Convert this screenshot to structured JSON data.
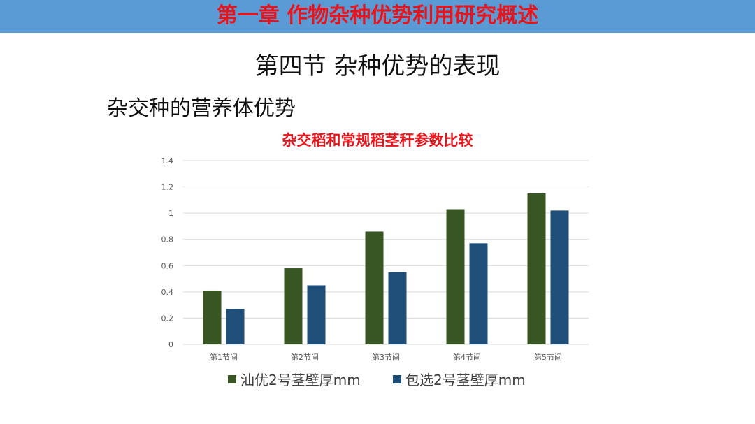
{
  "header": {
    "banner_title": "第一章  作物杂种优势利用研究概述"
  },
  "slide": {
    "section_title": "第四节 杂种优势的表现",
    "subheading": "杂交种的营养体优势"
  },
  "chart_data": {
    "type": "bar",
    "title": "杂交稻和常规稻茎秆参数比较",
    "categories": [
      "第1节间",
      "第2节间",
      "第3节间",
      "第4节间",
      "第5节间"
    ],
    "series": [
      {
        "name": "汕优2号茎壁厚mm",
        "color": "#375623",
        "values": [
          0.41,
          0.58,
          0.86,
          1.03,
          1.15
        ]
      },
      {
        "name": "包选2号茎壁厚mm",
        "color": "#1f4e79",
        "values": [
          0.27,
          0.45,
          0.55,
          0.77,
          1.02
        ]
      }
    ],
    "ylim": [
      0,
      1.4
    ],
    "yticks": [
      "0",
      "0.2",
      "0.4",
      "0.6",
      "0.8",
      "1",
      "1.2",
      "1.4"
    ],
    "grid": true,
    "legend_position": "bottom",
    "xlabel": "",
    "ylabel": ""
  }
}
